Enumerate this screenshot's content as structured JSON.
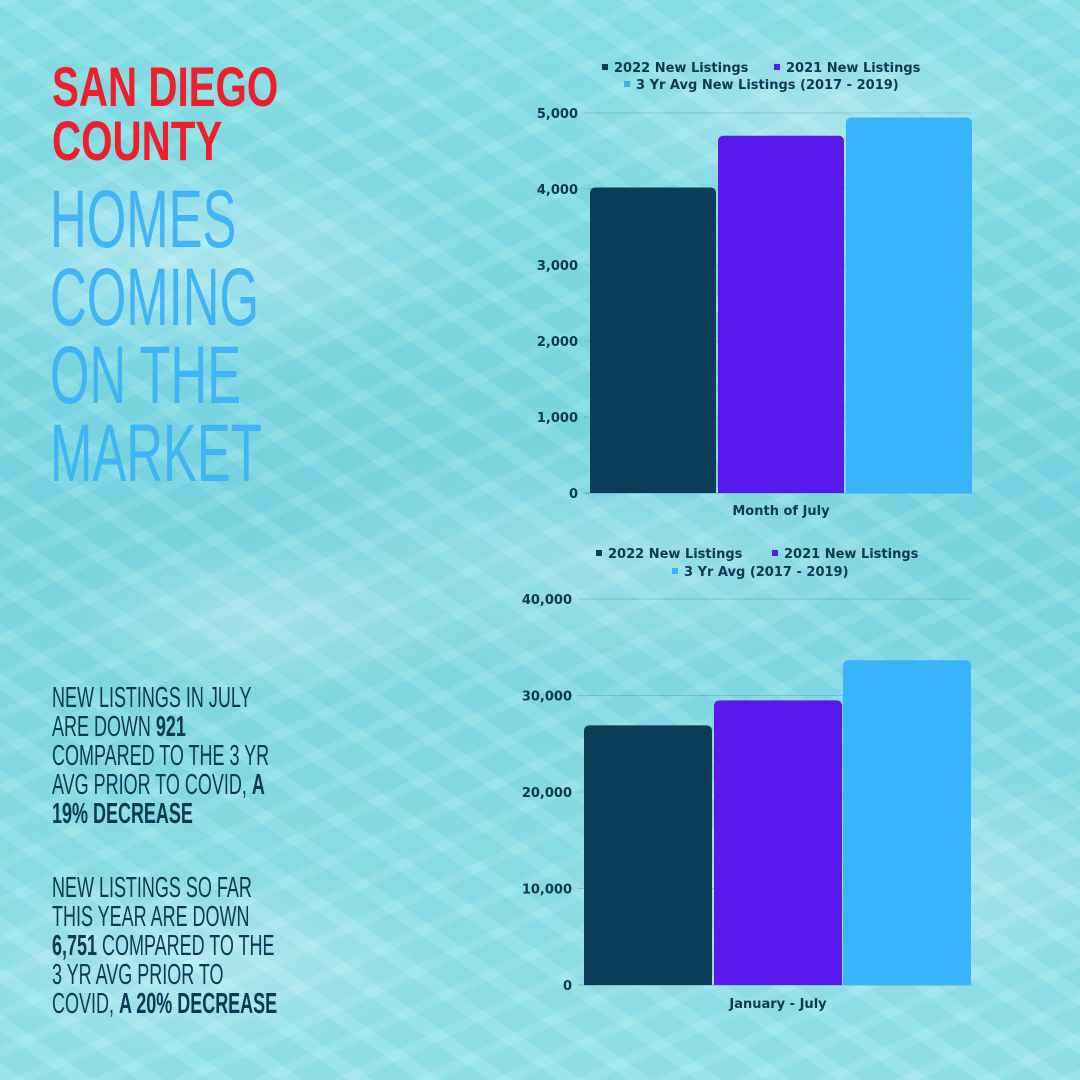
{
  "title": {
    "line1": "SAN DIEGO",
    "line2": "COUNTY",
    "sub": [
      "HOMES",
      "COMING",
      "ON THE",
      "MARKET"
    ]
  },
  "notes": [
    {
      "lines": [
        [
          {
            "t": "NEW LISTINGS IN JULY",
            "b": false
          }
        ],
        [
          {
            "t": "ARE DOWN ",
            "b": false
          },
          {
            "t": "921",
            "b": true
          }
        ],
        [
          {
            "t": "COMPARED TO THE 3 YR",
            "b": false
          }
        ],
        [
          {
            "t": "AVG PRIOR TO COVID, ",
            "b": false
          },
          {
            "t": "A",
            "b": true
          }
        ],
        [
          {
            "t": "19% DECREASE",
            "b": true
          }
        ]
      ]
    },
    {
      "lines": [
        [
          {
            "t": "NEW LISTINGS SO FAR",
            "b": false
          }
        ],
        [
          {
            "t": "THIS YEAR ARE DOWN",
            "b": false
          }
        ],
        [
          {
            "t": "6,751",
            "b": true
          },
          {
            "t": " COMPARED TO THE",
            "b": false
          }
        ],
        [
          {
            "t": "3 YR AVG PRIOR TO",
            "b": false
          }
        ],
        [
          {
            "t": "COVID, ",
            "b": false
          },
          {
            "t": "A 20% DECREASE",
            "b": true
          }
        ]
      ]
    }
  ],
  "chart_data": [
    {
      "type": "bar",
      "categories": [
        "Month of July"
      ],
      "series": [
        {
          "name": "2022 New Listings",
          "values": [
            4020
          ],
          "color": "#093d58"
        },
        {
          "name": "2021 New Listings",
          "values": [
            4700
          ],
          "color": "#5b18ea"
        },
        {
          "name": "3 Yr Avg New Listings (2017 - 2019)",
          "values": [
            4941
          ],
          "color": "#38b4fc"
        }
      ],
      "ylim": [
        0,
        5000
      ],
      "yticks": [
        "0",
        "1,000",
        "2,000",
        "3,000",
        "4,000",
        "5,000"
      ],
      "ytick_values": [
        0,
        1000,
        2000,
        3000,
        4000,
        5000
      ],
      "legend_position": "top",
      "grid": true
    },
    {
      "type": "bar",
      "categories": [
        "January - July"
      ],
      "series": [
        {
          "name": "2022 New Listings",
          "values": [
            26900
          ],
          "color": "#093d58"
        },
        {
          "name": "2021 New Listings",
          "values": [
            29500
          ],
          "color": "#5b18ea"
        },
        {
          "name": "3 Yr Avg (2017 - 2019)",
          "values": [
            33651
          ],
          "color": "#38b4fc"
        }
      ],
      "ylim": [
        0,
        40000
      ],
      "yticks": [
        "0",
        "10,000",
        "20,000",
        "30,000",
        "40,000"
      ],
      "ytick_values": [
        0,
        10000,
        20000,
        30000,
        40000
      ],
      "legend_position": "top",
      "grid": true
    }
  ]
}
